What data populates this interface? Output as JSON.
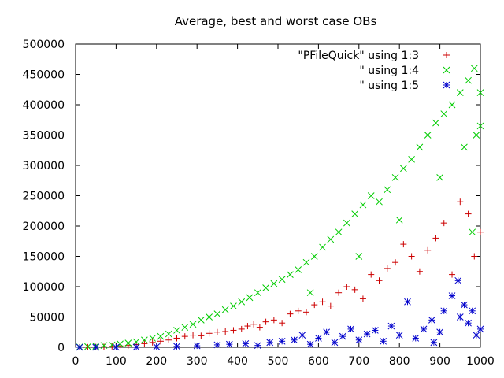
{
  "chart_data": {
    "type": "scatter",
    "title": "Average, best and worst case OBs",
    "xlabel": "",
    "ylabel": "",
    "xlim": [
      0,
      1000
    ],
    "ylim": [
      0,
      500000
    ],
    "xticks": [
      0,
      100,
      200,
      300,
      400,
      500,
      600,
      700,
      800,
      900,
      1000
    ],
    "yticks": [
      0,
      50000,
      100000,
      150000,
      200000,
      250000,
      300000,
      350000,
      400000,
      450000,
      500000
    ],
    "legend_position": "top-right",
    "grid": false,
    "series": [
      {
        "name": "\"PFileQuick\" using 1:3",
        "color": "#cc0000",
        "marker": "plus",
        "points": [
          [
            10,
            0
          ],
          [
            30,
            200
          ],
          [
            50,
            500
          ],
          [
            70,
            900
          ],
          [
            90,
            1500
          ],
          [
            110,
            2200
          ],
          [
            130,
            3000
          ],
          [
            150,
            4500
          ],
          [
            170,
            6000
          ],
          [
            190,
            8000
          ],
          [
            210,
            10000
          ],
          [
            230,
            12000
          ],
          [
            250,
            15000
          ],
          [
            270,
            18000
          ],
          [
            290,
            20000
          ],
          [
            310,
            19000
          ],
          [
            330,
            23000
          ],
          [
            350,
            25000
          ],
          [
            370,
            26000
          ],
          [
            390,
            28000
          ],
          [
            410,
            30000
          ],
          [
            425,
            35000
          ],
          [
            440,
            38000
          ],
          [
            455,
            33000
          ],
          [
            470,
            42000
          ],
          [
            490,
            45000
          ],
          [
            510,
            40000
          ],
          [
            530,
            55000
          ],
          [
            550,
            60000
          ],
          [
            570,
            58000
          ],
          [
            590,
            70000
          ],
          [
            610,
            75000
          ],
          [
            630,
            68000
          ],
          [
            650,
            90000
          ],
          [
            670,
            100000
          ],
          [
            690,
            95000
          ],
          [
            710,
            80000
          ],
          [
            730,
            120000
          ],
          [
            750,
            110000
          ],
          [
            770,
            130000
          ],
          [
            790,
            140000
          ],
          [
            810,
            170000
          ],
          [
            830,
            150000
          ],
          [
            850,
            125000
          ],
          [
            870,
            160000
          ],
          [
            890,
            180000
          ],
          [
            910,
            205000
          ],
          [
            930,
            120000
          ],
          [
            950,
            240000
          ],
          [
            970,
            220000
          ],
          [
            985,
            150000
          ],
          [
            1000,
            190000
          ]
        ]
      },
      {
        "name": "\" using 1:4",
        "color": "#00cc00",
        "marker": "cross",
        "points": [
          [
            10,
            500
          ],
          [
            30,
            1000
          ],
          [
            50,
            2000
          ],
          [
            70,
            3000
          ],
          [
            90,
            4000
          ],
          [
            110,
            5500
          ],
          [
            130,
            7000
          ],
          [
            150,
            9000
          ],
          [
            170,
            12000
          ],
          [
            190,
            15000
          ],
          [
            210,
            18000
          ],
          [
            230,
            22000
          ],
          [
            250,
            28000
          ],
          [
            270,
            33000
          ],
          [
            290,
            38000
          ],
          [
            310,
            45000
          ],
          [
            330,
            50000
          ],
          [
            350,
            55000
          ],
          [
            370,
            62000
          ],
          [
            390,
            68000
          ],
          [
            410,
            75000
          ],
          [
            430,
            82000
          ],
          [
            450,
            90000
          ],
          [
            470,
            98000
          ],
          [
            490,
            105000
          ],
          [
            510,
            112000
          ],
          [
            530,
            120000
          ],
          [
            550,
            128000
          ],
          [
            570,
            140000
          ],
          [
            590,
            150000
          ],
          [
            610,
            165000
          ],
          [
            630,
            178000
          ],
          [
            650,
            190000
          ],
          [
            670,
            205000
          ],
          [
            690,
            220000
          ],
          [
            710,
            235000
          ],
          [
            730,
            250000
          ],
          [
            750,
            240000
          ],
          [
            770,
            260000
          ],
          [
            790,
            280000
          ],
          [
            810,
            295000
          ],
          [
            830,
            310000
          ],
          [
            850,
            330000
          ],
          [
            870,
            350000
          ],
          [
            890,
            370000
          ],
          [
            910,
            385000
          ],
          [
            930,
            400000
          ],
          [
            950,
            420000
          ],
          [
            970,
            440000
          ],
          [
            985,
            460000
          ],
          [
            1000,
            420000
          ],
          [
            580,
            90000
          ],
          [
            700,
            150000
          ],
          [
            800,
            210000
          ],
          [
            900,
            280000
          ],
          [
            960,
            330000
          ],
          [
            990,
            350000
          ],
          [
            1000,
            365000
          ],
          [
            980,
            190000
          ]
        ]
      },
      {
        "name": "\" using 1:5",
        "color": "#0000cc",
        "marker": "star",
        "points": [
          [
            10,
            0
          ],
          [
            50,
            0
          ],
          [
            100,
            100
          ],
          [
            150,
            300
          ],
          [
            200,
            800
          ],
          [
            250,
            1500
          ],
          [
            300,
            2500
          ],
          [
            350,
            4000
          ],
          [
            380,
            5000
          ],
          [
            420,
            6000
          ],
          [
            450,
            3000
          ],
          [
            480,
            8000
          ],
          [
            510,
            10000
          ],
          [
            540,
            12000
          ],
          [
            560,
            20000
          ],
          [
            580,
            5000
          ],
          [
            600,
            15000
          ],
          [
            620,
            25000
          ],
          [
            640,
            8000
          ],
          [
            660,
            18000
          ],
          [
            680,
            30000
          ],
          [
            700,
            12000
          ],
          [
            720,
            22000
          ],
          [
            740,
            28000
          ],
          [
            760,
            10000
          ],
          [
            780,
            35000
          ],
          [
            800,
            20000
          ],
          [
            820,
            75000
          ],
          [
            840,
            15000
          ],
          [
            860,
            30000
          ],
          [
            880,
            45000
          ],
          [
            900,
            25000
          ],
          [
            910,
            60000
          ],
          [
            930,
            85000
          ],
          [
            950,
            50000
          ],
          [
            970,
            40000
          ],
          [
            990,
            20000
          ],
          [
            1000,
            30000
          ],
          [
            885,
            8000
          ],
          [
            945,
            110000
          ],
          [
            960,
            70000
          ],
          [
            980,
            60000
          ]
        ]
      }
    ]
  }
}
